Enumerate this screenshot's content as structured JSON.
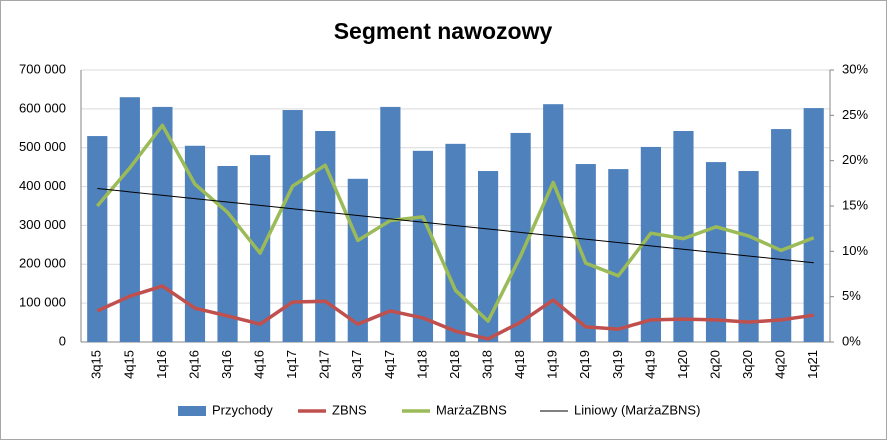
{
  "chart_data": {
    "type": "combo",
    "title": "Segment nawozowy",
    "categories": [
      "3q15",
      "4q15",
      "1q16",
      "2q16",
      "3q16",
      "4q16",
      "1q17",
      "2q17",
      "3q17",
      "4q17",
      "1q18",
      "2q18",
      "3q18",
      "4q18",
      "1q19",
      "2q19",
      "3q19",
      "4q19",
      "1q20",
      "2q20",
      "3q20",
      "4q20",
      "1q21"
    ],
    "series": [
      {
        "name": "Przychody",
        "type": "bar",
        "color": "#4f81bd",
        "values": [
          530000,
          630000,
          605000,
          505000,
          453000,
          481000,
          597000,
          543000,
          420000,
          605000,
          492000,
          510000,
          440000,
          538000,
          612000,
          458000,
          445000,
          502000,
          543000,
          463000,
          440000,
          548000,
          602000
        ]
      },
      {
        "name": "ZBNS",
        "type": "line",
        "color": "#c0504d",
        "values": [
          80000,
          118000,
          144000,
          87000,
          67000,
          46000,
          103000,
          105000,
          46000,
          80000,
          62000,
          28000,
          8000,
          51000,
          108000,
          39000,
          33000,
          57000,
          59000,
          57000,
          51000,
          57000,
          69000
        ]
      },
      {
        "name": "MarżaZBNS",
        "type": "line",
        "axis": "y2",
        "color": "#9bbb59",
        "values": [
          15.0,
          19.2,
          23.9,
          17.4,
          14.3,
          9.8,
          17.2,
          19.5,
          11.2,
          13.4,
          13.8,
          5.7,
          2.3,
          9.5,
          17.6,
          8.7,
          7.3,
          12.0,
          11.4,
          12.7,
          11.7,
          10.1,
          11.5
        ]
      },
      {
        "name": "Liniowy (MarżaZBNS)",
        "type": "trend",
        "axis": "y2",
        "color": "#000000"
      }
    ],
    "ylim": [
      0,
      700000
    ],
    "yticks": [
      0,
      {
        "value": 100000,
        "label": "100 000"
      },
      {
        "value": 200000,
        "label": "200 000"
      },
      {
        "value": 300000,
        "label": "300 000"
      },
      {
        "value": 400000,
        "label": "400 000"
      },
      {
        "value": 500000,
        "label": "500 000"
      },
      {
        "value": 600000,
        "label": "600 000"
      },
      {
        "value": 700000,
        "label": "700 000"
      }
    ],
    "y2lim": [
      0,
      30
    ],
    "y2ticks": [
      {
        "value": 0,
        "label": "0%"
      },
      {
        "value": 5,
        "label": "5%"
      },
      {
        "value": 10,
        "label": "10%"
      },
      {
        "value": 15,
        "label": "15%"
      },
      {
        "value": 20,
        "label": "20%"
      },
      {
        "value": 25,
        "label": "25%"
      },
      {
        "value": 30,
        "label": "30%"
      }
    ],
    "grid": true,
    "legend": "bottom"
  }
}
